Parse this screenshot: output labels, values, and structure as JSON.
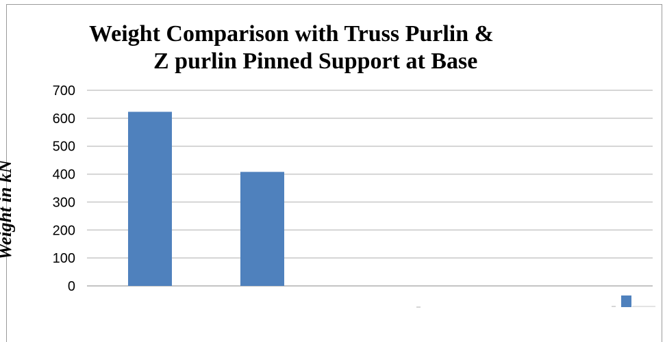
{
  "chart_data": {
    "type": "bar",
    "title_line1": "Weight Comparison with Truss Purlin &",
    "title_line2": "Z purlin Pinned Support at Base",
    "xlabel": "",
    "ylabel": "Weight in kN",
    "ylim": [
      0,
      700
    ],
    "yticks": [
      0,
      100,
      200,
      300,
      400,
      500,
      600,
      700
    ],
    "categories": [
      "",
      "",
      "",
      ""
    ],
    "series": [
      {
        "values": [
          623,
          408,
          0,
          0
        ],
        "color": "#4f81bd"
      }
    ],
    "grid": true,
    "legend_position": "bottom-right"
  }
}
